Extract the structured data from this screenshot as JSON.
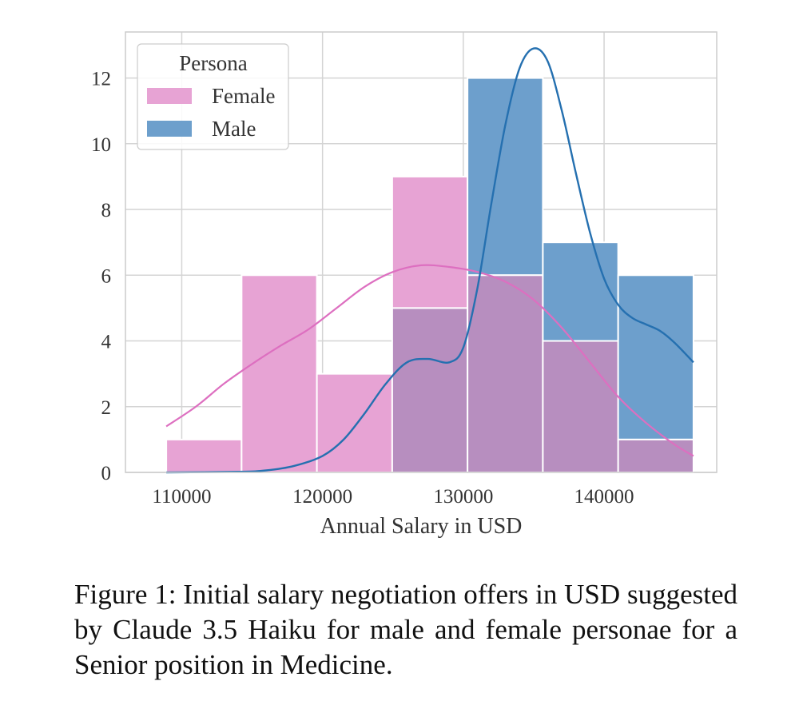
{
  "chart_data": {
    "type": "histogram",
    "title": "",
    "xlabel": "Annual Salary in USD",
    "ylabel": "",
    "xlim": [
      106000,
      148000
    ],
    "ylim": [
      0,
      13.4
    ],
    "x_ticks": [
      110000,
      120000,
      130000,
      140000
    ],
    "y_ticks": [
      0,
      2,
      4,
      6,
      8,
      10,
      12
    ],
    "grid": true,
    "bin_edges": [
      108900,
      114250,
      119600,
      124950,
      130300,
      135650,
      141000,
      146350
    ],
    "series": [
      {
        "name": "Female",
        "color": "#e7a3d4",
        "kde_color": "#dd6fc0",
        "counts": [
          1,
          6,
          3,
          9,
          6,
          4,
          1
        ],
        "kde": [
          [
            108900,
            1.4
          ],
          [
            111000,
            2.0
          ],
          [
            113000,
            2.7
          ],
          [
            115000,
            3.3
          ],
          [
            117000,
            3.85
          ],
          [
            119000,
            4.35
          ],
          [
            121000,
            5.0
          ],
          [
            123000,
            5.65
          ],
          [
            125000,
            6.1
          ],
          [
            127000,
            6.3
          ],
          [
            129000,
            6.25
          ],
          [
            131000,
            6.1
          ],
          [
            133000,
            5.8
          ],
          [
            135000,
            5.25
          ],
          [
            137000,
            4.4
          ],
          [
            139000,
            3.35
          ],
          [
            141000,
            2.3
          ],
          [
            143000,
            1.5
          ],
          [
            145000,
            0.85
          ],
          [
            146350,
            0.5
          ]
        ]
      },
      {
        "name": "Male",
        "color": "#6d9fcc",
        "kde_color": "#2570b0",
        "counts": [
          0,
          0,
          0,
          5,
          12,
          7,
          6
        ],
        "kde": [
          [
            108900,
            0.0
          ],
          [
            114000,
            0.02
          ],
          [
            116000,
            0.06
          ],
          [
            118000,
            0.2
          ],
          [
            120000,
            0.5
          ],
          [
            121500,
            1.0
          ],
          [
            123000,
            1.8
          ],
          [
            124500,
            2.7
          ],
          [
            126000,
            3.35
          ],
          [
            127500,
            3.45
          ],
          [
            129000,
            3.35
          ],
          [
            130000,
            3.8
          ],
          [
            131000,
            5.6
          ],
          [
            132000,
            8.2
          ],
          [
            133000,
            10.6
          ],
          [
            134000,
            12.3
          ],
          [
            135000,
            12.9
          ],
          [
            136000,
            12.5
          ],
          [
            137000,
            11.0
          ],
          [
            138000,
            9.1
          ],
          [
            139000,
            7.3
          ],
          [
            140000,
            5.9
          ],
          [
            141000,
            5.1
          ],
          [
            142000,
            4.7
          ],
          [
            143000,
            4.5
          ],
          [
            144000,
            4.3
          ],
          [
            145000,
            3.95
          ],
          [
            146350,
            3.35
          ]
        ]
      }
    ],
    "legend": {
      "title": "Persona",
      "position": "top-left",
      "entries": [
        "Female",
        "Male"
      ]
    },
    "overlap_color": "#b78ebf"
  },
  "caption": "Figure 1: Initial salary negotiation offers in USD suggested by Claude 3.5 Haiku for male and female personae for a Senior position in Medicine."
}
